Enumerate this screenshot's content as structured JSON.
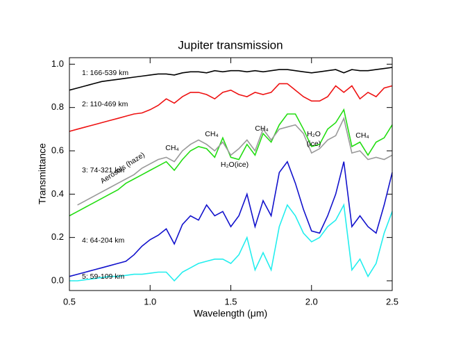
{
  "chart_data": {
    "type": "line",
    "title": "Jupiter transmission",
    "x_label": "Wavelength (μm)",
    "y_label": "Transmittance",
    "x": [
      0.5,
      0.55,
      0.6,
      0.65,
      0.7,
      0.75,
      0.8,
      0.85,
      0.9,
      0.95,
      1.0,
      1.05,
      1.1,
      1.15,
      1.2,
      1.25,
      1.3,
      1.35,
      1.4,
      1.45,
      1.5,
      1.55,
      1.6,
      1.65,
      1.7,
      1.75,
      1.8,
      1.85,
      1.9,
      1.95,
      2.0,
      2.05,
      2.1,
      2.15,
      2.2,
      2.25,
      2.3,
      2.35,
      2.4,
      2.45,
      2.5
    ],
    "series": [
      {
        "name": "1: 166-539 km",
        "color": "#000000",
        "values": [
          0.88,
          0.89,
          0.9,
          0.91,
          0.92,
          0.925,
          0.93,
          0.935,
          0.94,
          0.945,
          0.95,
          0.955,
          0.955,
          0.95,
          0.96,
          0.965,
          0.965,
          0.96,
          0.97,
          0.965,
          0.97,
          0.97,
          0.965,
          0.97,
          0.965,
          0.97,
          0.975,
          0.975,
          0.97,
          0.965,
          0.96,
          0.965,
          0.97,
          0.975,
          0.96,
          0.975,
          0.97,
          0.97,
          0.975,
          0.98,
          0.985
        ]
      },
      {
        "name": "2: 110-469 km",
        "color": "#ee1111",
        "values": [
          0.69,
          0.7,
          0.71,
          0.72,
          0.73,
          0.74,
          0.75,
          0.76,
          0.77,
          0.775,
          0.79,
          0.81,
          0.84,
          0.82,
          0.85,
          0.87,
          0.87,
          0.86,
          0.84,
          0.87,
          0.88,
          0.86,
          0.85,
          0.87,
          0.86,
          0.87,
          0.91,
          0.91,
          0.88,
          0.85,
          0.83,
          0.83,
          0.85,
          0.9,
          0.87,
          0.9,
          0.84,
          0.87,
          0.85,
          0.89,
          0.9
        ]
      },
      {
        "name": "3: 74-321 km",
        "color": "#22dd11",
        "values": [
          0.3,
          0.32,
          0.34,
          0.36,
          0.38,
          0.4,
          0.42,
          0.45,
          0.47,
          0.49,
          0.51,
          0.53,
          0.55,
          0.51,
          0.56,
          0.6,
          0.62,
          0.61,
          0.57,
          0.66,
          0.57,
          0.56,
          0.63,
          0.58,
          0.68,
          0.64,
          0.72,
          0.77,
          0.77,
          0.7,
          0.62,
          0.63,
          0.7,
          0.73,
          0.79,
          0.62,
          0.64,
          0.58,
          0.64,
          0.66,
          0.72
        ]
      },
      {
        "name": "Aerosols (haze)",
        "color": "#999999",
        "values": [
          null,
          0.35,
          0.37,
          0.39,
          0.41,
          0.43,
          0.45,
          0.47,
          0.49,
          0.52,
          0.54,
          0.56,
          0.57,
          0.55,
          0.6,
          0.63,
          0.65,
          0.63,
          0.6,
          0.64,
          0.58,
          0.61,
          0.65,
          0.6,
          0.7,
          0.65,
          0.7,
          0.71,
          0.72,
          0.68,
          0.59,
          0.61,
          0.65,
          0.67,
          0.75,
          0.59,
          0.6,
          0.56,
          0.57,
          0.56,
          0.58
        ]
      },
      {
        "name": "4: 64-204 km",
        "color": "#1111cc",
        "values": [
          0.02,
          0.03,
          0.04,
          0.05,
          0.06,
          0.07,
          0.08,
          0.09,
          0.12,
          0.16,
          0.19,
          0.21,
          0.24,
          0.17,
          0.26,
          0.3,
          0.28,
          0.35,
          0.3,
          0.32,
          0.25,
          0.3,
          0.4,
          0.25,
          0.37,
          0.3,
          0.5,
          0.55,
          0.45,
          0.33,
          0.23,
          0.22,
          0.3,
          0.4,
          0.55,
          0.25,
          0.3,
          0.25,
          0.22,
          0.35,
          0.5
        ]
      },
      {
        "name": "5: 59-109 km",
        "color": "#22eeee",
        "values": [
          0.0,
          0.0,
          0.005,
          0.01,
          0.015,
          0.02,
          0.02,
          0.025,
          0.03,
          0.03,
          0.035,
          0.04,
          0.04,
          0.0,
          0.04,
          0.06,
          0.08,
          0.09,
          0.1,
          0.1,
          0.08,
          0.12,
          0.2,
          0.05,
          0.13,
          0.05,
          0.25,
          0.35,
          0.3,
          0.22,
          0.18,
          0.2,
          0.25,
          0.28,
          0.35,
          0.05,
          0.1,
          0.02,
          0.08,
          0.22,
          0.32
        ]
      }
    ],
    "annotations": [
      "CH₄",
      "CH₄",
      "CH₄",
      "CH₄",
      "H₂O(ice)",
      "H₂O",
      "(ice)"
    ],
    "xlim": [
      0.5,
      2.5
    ],
    "ylim": [
      -0.045,
      1.03
    ],
    "xticks": [
      0.5,
      {
        "value": 1,
        "label": "1.0"
      },
      1.5,
      {
        "value": 2,
        "label": "2.0"
      },
      2.5
    ],
    "yticks": [
      {
        "value": 0,
        "label": "0.0"
      },
      0.2,
      0.4,
      0.6,
      0.8,
      {
        "value": 1,
        "label": "1.0"
      }
    ],
    "grid": false
  }
}
